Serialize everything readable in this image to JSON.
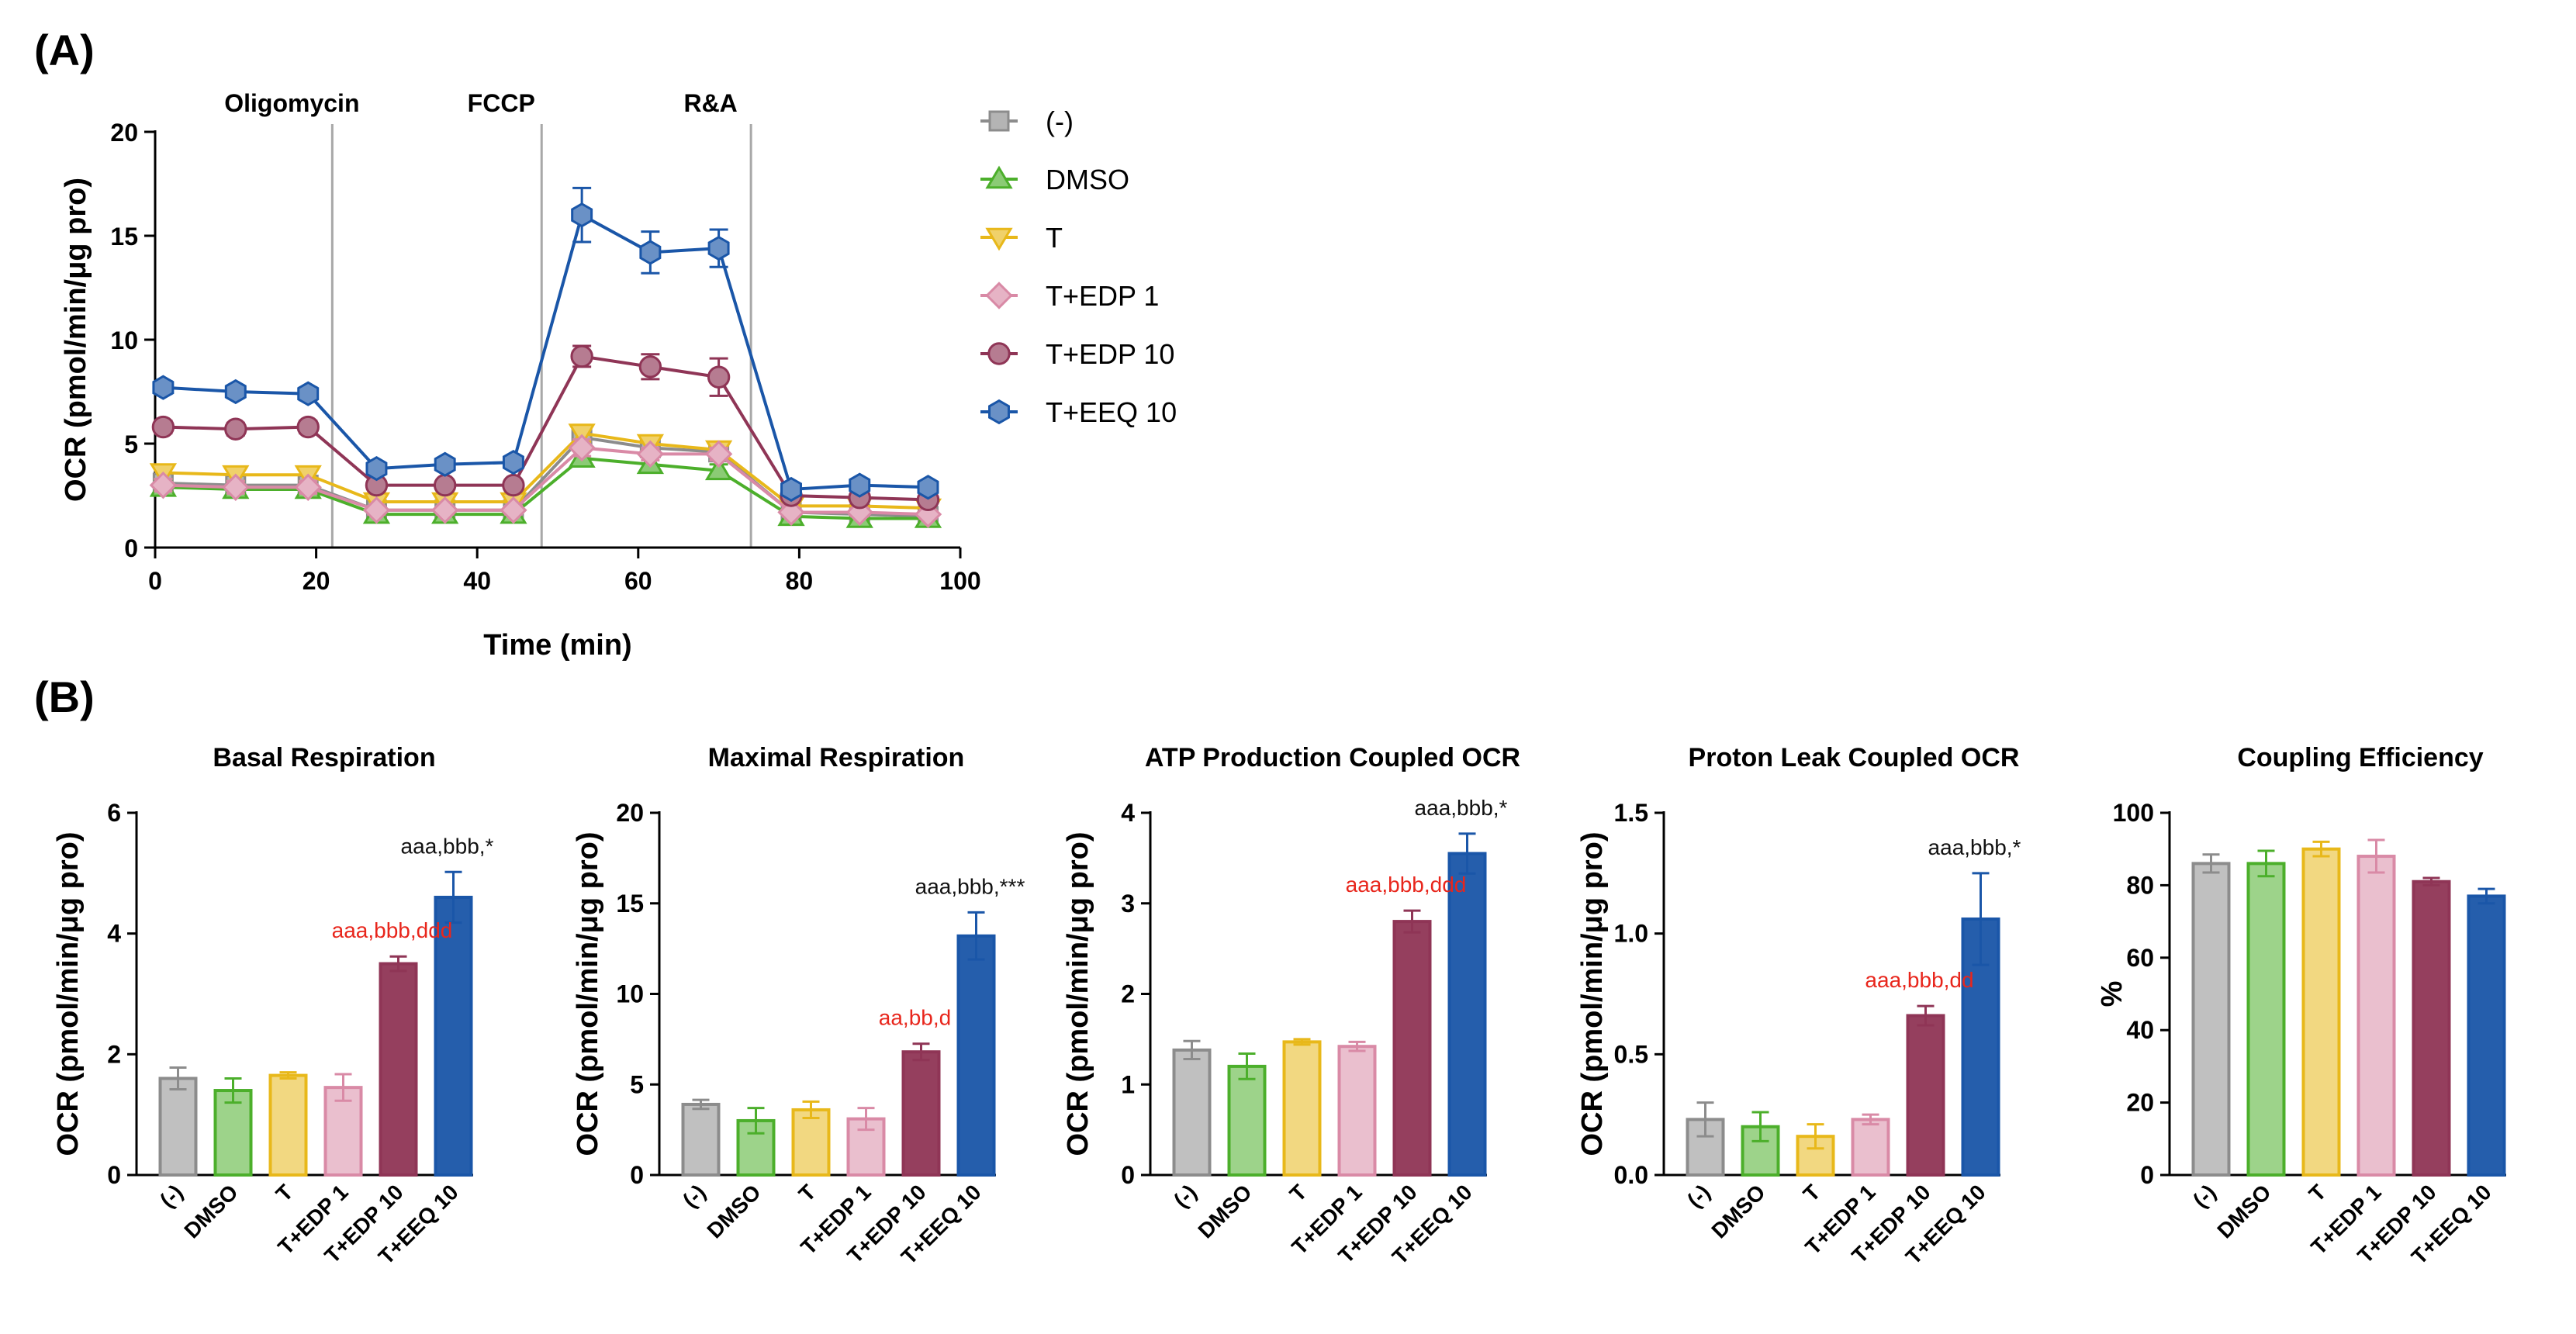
{
  "panel_labels": {
    "a": "(A)",
    "b": "(B)"
  },
  "colors": {
    "none": "#8c8c8c",
    "dmso": "#4caf2b",
    "t": "#e8b81a",
    "edp1": "#d98aa6",
    "edp10": "#8f3556",
    "eeq10": "#1a56a8",
    "sig_red": "#e8261c",
    "sig_black": "#111111",
    "vline": "#a8a8a8"
  },
  "chart_data": [
    {
      "type": "line",
      "title": "",
      "xlabel": "Time (min)",
      "ylabel": "OCR (pmol/min/μg pro)",
      "xlim": [
        0,
        100
      ],
      "ylim": [
        0,
        20
      ],
      "xticks": [
        0,
        20,
        40,
        60,
        80,
        100
      ],
      "yticks": [
        0,
        5,
        10,
        15,
        20
      ],
      "injections": [
        {
          "label": "Oligomycin",
          "x": 22
        },
        {
          "label": "FCCP",
          "x": 48
        },
        {
          "label": "R&A",
          "x": 74
        }
      ],
      "x": [
        1,
        10,
        19,
        27.5,
        36,
        44.5,
        53,
        61.5,
        70,
        79,
        87.5,
        96
      ],
      "series": [
        {
          "name": "(-)",
          "key": "none",
          "marker": "square",
          "values": [
            3.1,
            3.0,
            3.0,
            1.8,
            1.8,
            1.8,
            5.3,
            4.8,
            4.6,
            1.7,
            1.6,
            1.5
          ],
          "errors": [
            0.3,
            0.3,
            0.3,
            0.2,
            0.2,
            0.2,
            0.4,
            0.3,
            0.3,
            0.2,
            0.2,
            0.2
          ]
        },
        {
          "name": "DMSO",
          "key": "dmso",
          "marker": "triangle-up",
          "values": [
            2.9,
            2.8,
            2.8,
            1.6,
            1.6,
            1.6,
            4.3,
            4.0,
            3.7,
            1.5,
            1.4,
            1.4
          ],
          "errors": [
            0.3,
            0.3,
            0.3,
            0.2,
            0.2,
            0.2,
            0.4,
            0.4,
            0.3,
            0.2,
            0.2,
            0.2
          ]
        },
        {
          "name": "T",
          "key": "t",
          "marker": "triangle-down",
          "values": [
            3.6,
            3.5,
            3.5,
            2.2,
            2.2,
            2.2,
            5.5,
            5.0,
            4.7,
            2.0,
            2.0,
            1.9
          ],
          "errors": [
            0.3,
            0.3,
            0.3,
            0.2,
            0.2,
            0.2,
            0.4,
            0.3,
            0.3,
            0.2,
            0.2,
            0.2
          ]
        },
        {
          "name": "T+EDP 1",
          "key": "edp1",
          "marker": "diamond",
          "values": [
            3.0,
            2.9,
            2.9,
            1.8,
            1.8,
            1.8,
            4.8,
            4.5,
            4.5,
            1.7,
            1.7,
            1.6
          ],
          "errors": [
            0.3,
            0.3,
            0.3,
            0.2,
            0.2,
            0.2,
            0.4,
            0.3,
            0.3,
            0.2,
            0.2,
            0.2
          ]
        },
        {
          "name": "T+EDP 10",
          "key": "edp10",
          "marker": "circle",
          "values": [
            5.8,
            5.7,
            5.8,
            3.0,
            3.0,
            3.0,
            9.2,
            8.7,
            8.2,
            2.5,
            2.4,
            2.3
          ],
          "errors": [
            0.3,
            0.3,
            0.3,
            0.2,
            0.2,
            0.2,
            0.5,
            0.6,
            0.9,
            0.2,
            0.2,
            0.2
          ]
        },
        {
          "name": "T+EEQ 10",
          "key": "eeq10",
          "marker": "hexagon",
          "values": [
            7.7,
            7.5,
            7.4,
            3.8,
            4.0,
            4.1,
            16.0,
            14.2,
            14.4,
            2.8,
            3.0,
            2.9
          ],
          "errors": [
            0.3,
            0.3,
            0.3,
            0.2,
            0.2,
            0.2,
            1.3,
            1.0,
            0.9,
            0.2,
            0.2,
            0.2
          ]
        }
      ]
    },
    {
      "type": "bar",
      "title": "Basal Respiration",
      "ylabel": "OCR (pmol/min/μg pro)",
      "ylim": [
        0,
        6
      ],
      "yticks": [
        "0",
        "2",
        "4",
        "6"
      ],
      "categories": [
        "(-)",
        "DMSO",
        "T",
        "T+EDP 1",
        "T+EDP 10",
        "T+EEQ 10"
      ],
      "values": [
        1.6,
        1.4,
        1.65,
        1.45,
        3.5,
        4.6
      ],
      "errors": [
        0.18,
        0.2,
        0.05,
        0.22,
        0.12,
        0.42
      ],
      "annotations": [
        {
          "bar": 4,
          "text": "aaa,bbb,ddd",
          "color": "red"
        },
        {
          "bar": 5,
          "text": "aaa,bbb,*",
          "color": "black"
        }
      ]
    },
    {
      "type": "bar",
      "title": "Maximal Respiration",
      "ylabel": "OCR (pmol/min/μg pro)",
      "ylim": [
        0,
        20
      ],
      "yticks": [
        "0",
        "5",
        "10",
        "15",
        "20"
      ],
      "categories": [
        "(-)",
        "DMSO",
        "T",
        "T+EDP 1",
        "T+EDP 10",
        "T+EEQ 10"
      ],
      "values": [
        3.9,
        3.0,
        3.6,
        3.1,
        6.8,
        13.2
      ],
      "errors": [
        0.25,
        0.7,
        0.45,
        0.6,
        0.45,
        1.3
      ],
      "annotations": [
        {
          "bar": 4,
          "text": "aa,bb,d",
          "color": "red"
        },
        {
          "bar": 5,
          "text": "aaa,bbb,***",
          "color": "black"
        }
      ]
    },
    {
      "type": "bar",
      "title": "ATP Production Coupled OCR",
      "ylabel": "OCR (pmol/min/μg pro)",
      "ylim": [
        0,
        4
      ],
      "yticks": [
        "0",
        "1",
        "2",
        "3",
        "4"
      ],
      "categories": [
        "(-)",
        "DMSO",
        "T",
        "T+EDP 1",
        "T+EDP 10",
        "T+EEQ 10"
      ],
      "values": [
        1.38,
        1.2,
        1.47,
        1.42,
        2.8,
        3.55
      ],
      "errors": [
        0.1,
        0.14,
        0.03,
        0.05,
        0.12,
        0.22
      ],
      "annotations": [
        {
          "bar": 4,
          "text": "aaa,bbb,ddd",
          "color": "red"
        },
        {
          "bar": 5,
          "text": "aaa,bbb,*",
          "color": "black"
        }
      ]
    },
    {
      "type": "bar",
      "title": "Proton Leak Coupled OCR",
      "ylabel": "OCR (pmol/min/μg pro)",
      "ylim": [
        0,
        1.5
      ],
      "yticks": [
        "0.0",
        "0.5",
        "1.0",
        "1.5"
      ],
      "categories": [
        "(-)",
        "DMSO",
        "T",
        "T+EDP 1",
        "T+EDP 10",
        "T+EEQ 10"
      ],
      "values": [
        0.23,
        0.2,
        0.16,
        0.23,
        0.66,
        1.06
      ],
      "errors": [
        0.07,
        0.06,
        0.05,
        0.02,
        0.04,
        0.19
      ],
      "annotations": [
        {
          "bar": 4,
          "text": "aaa,bbb,dd",
          "color": "red"
        },
        {
          "bar": 5,
          "text": "aaa,bbb,*",
          "color": "black"
        }
      ]
    },
    {
      "type": "bar",
      "title": "Coupling Efficiency",
      "ylabel": "%",
      "ylim": [
        0,
        100
      ],
      "yticks": [
        "0",
        "20",
        "40",
        "60",
        "80",
        "100"
      ],
      "categories": [
        "(-)",
        "DMSO",
        "T",
        "T+EDP 1",
        "T+EDP 10",
        "T+EEQ 10"
      ],
      "values": [
        86,
        86,
        90,
        88,
        81,
        77
      ],
      "errors": [
        2.5,
        3.5,
        2.0,
        4.5,
        1.0,
        2.0
      ],
      "annotations": []
    }
  ]
}
